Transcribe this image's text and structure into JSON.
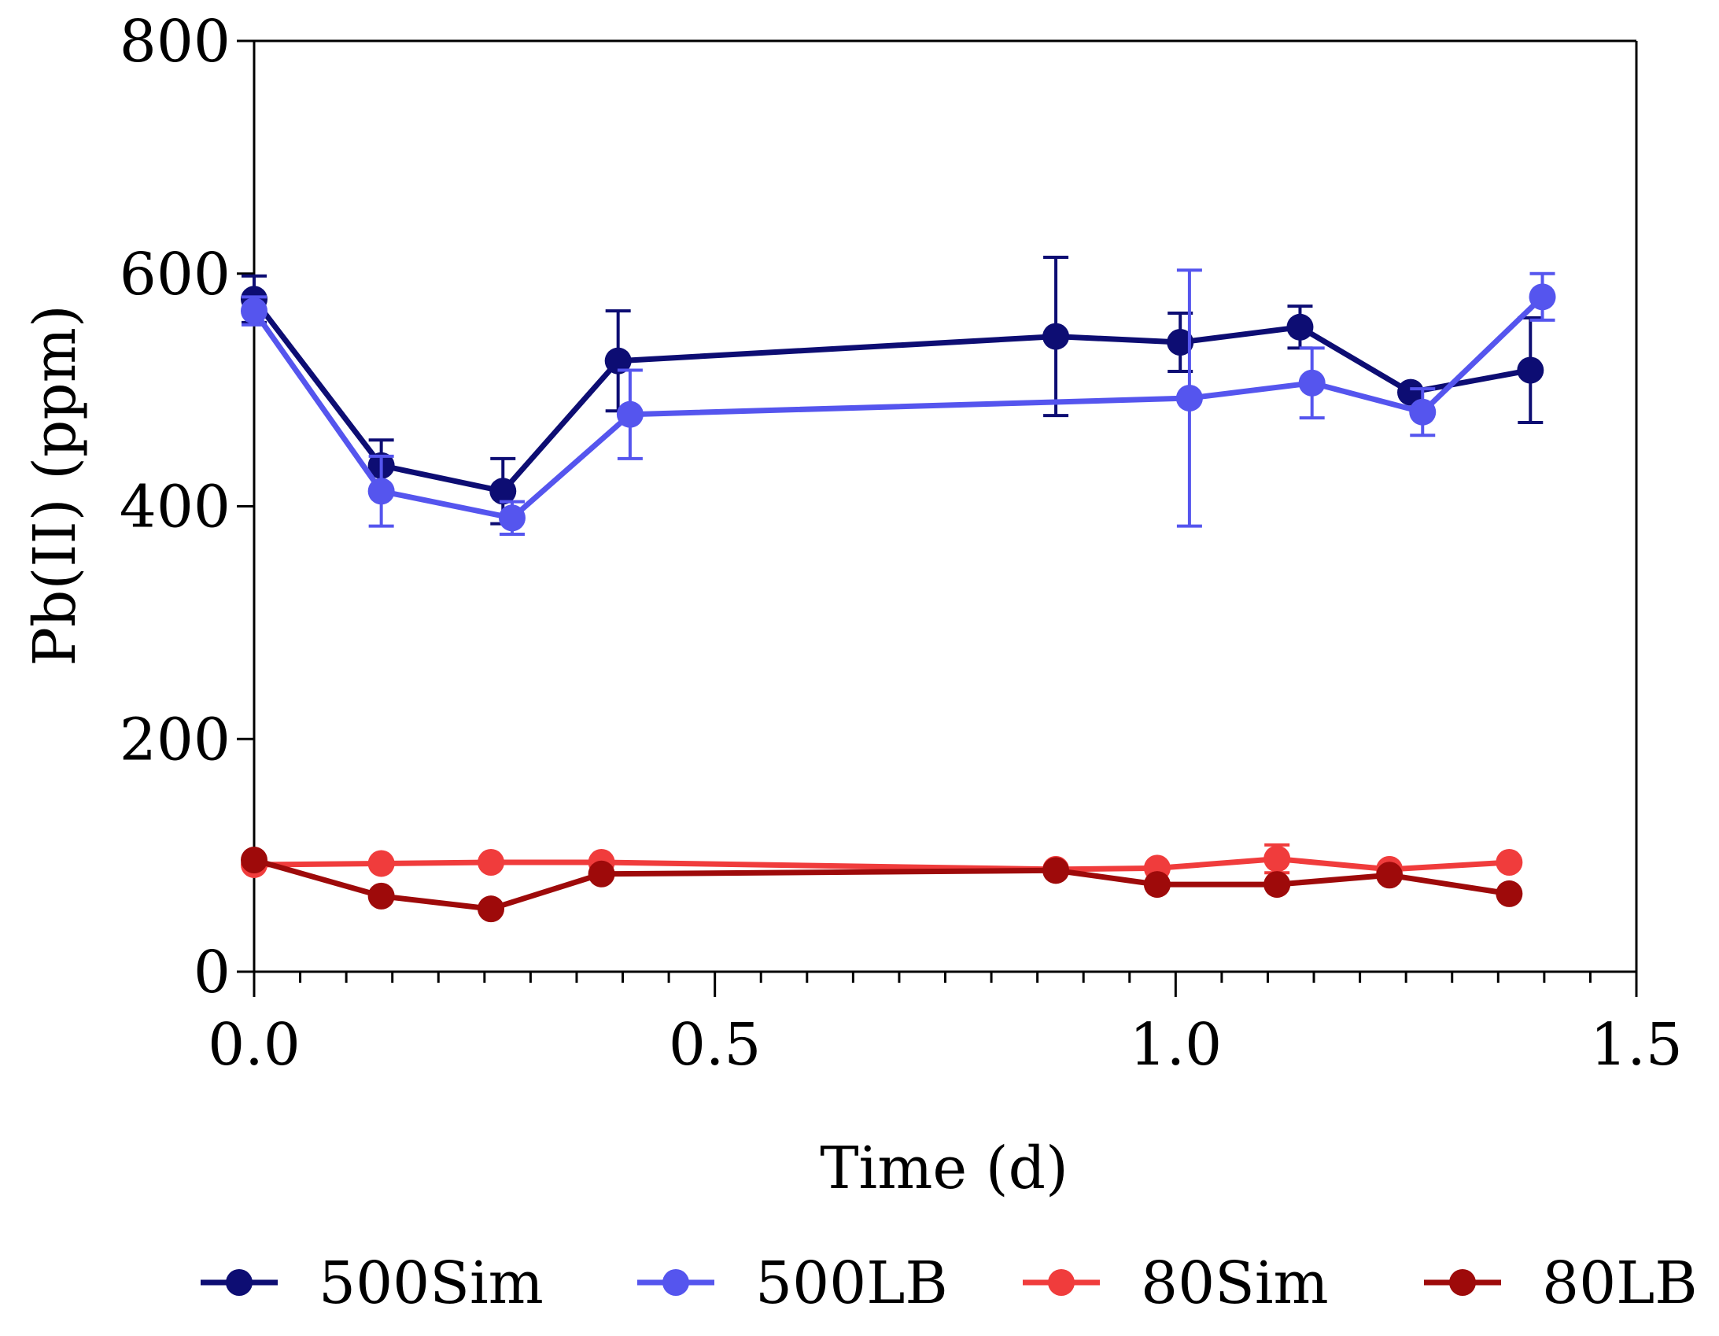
{
  "chart_data": {
    "type": "line",
    "title": "",
    "xlabel": "Time (d)",
    "ylabel": "Pb(II) (ppm)",
    "xlim": [
      0,
      1.5
    ],
    "ylim": [
      0,
      800
    ],
    "xticks": [
      0.0,
      0.5,
      1.0,
      1.5
    ],
    "xtick_labels": [
      "0.0",
      "0.5",
      "1.0",
      "1.5"
    ],
    "yticks": [
      0,
      200,
      400,
      600,
      800
    ],
    "ytick_labels": [
      "0",
      "200",
      "400",
      "600",
      "800"
    ],
    "x_minor_step": 0.05,
    "legend_position": "bottom",
    "grid": false,
    "series": [
      {
        "name": "500Sim",
        "color": "#0d0d73",
        "x": [
          0.0,
          0.138,
          0.27,
          0.395,
          0.87,
          1.005,
          1.135,
          1.255,
          1.385
        ],
        "y": [
          578,
          435,
          413,
          525,
          546,
          541,
          554,
          498,
          517
        ],
        "err": [
          20,
          22,
          28,
          43,
          68,
          25,
          18,
          0,
          45
        ]
      },
      {
        "name": "500LB",
        "color": "#5555ee",
        "x": [
          0.0,
          0.138,
          0.28,
          0.408,
          1.015,
          1.148,
          1.268,
          1.398
        ],
        "y": [
          568,
          413,
          390,
          479,
          493,
          506,
          481,
          580
        ],
        "err": [
          12,
          30,
          14,
          38,
          110,
          30,
          20,
          20
        ]
      },
      {
        "name": "80Sim",
        "color": "#f03c3c",
        "x": [
          0.0,
          0.138,
          0.257,
          0.377,
          0.87,
          0.98,
          1.11,
          1.232,
          1.362
        ],
        "y": [
          92,
          93,
          94,
          94,
          88,
          89,
          97,
          88,
          94
        ],
        "err": [
          0,
          0,
          0,
          0,
          0,
          0,
          12,
          0,
          0
        ]
      },
      {
        "name": "80LB",
        "color": "#9e0a0a",
        "x": [
          0.0,
          0.138,
          0.257,
          0.377,
          0.87,
          0.98,
          1.11,
          1.232,
          1.362
        ],
        "y": [
          96,
          65,
          54,
          84,
          87,
          75,
          75,
          83,
          67
        ],
        "err": [
          0,
          0,
          0,
          0,
          0,
          0,
          0,
          0,
          0
        ]
      }
    ]
  }
}
